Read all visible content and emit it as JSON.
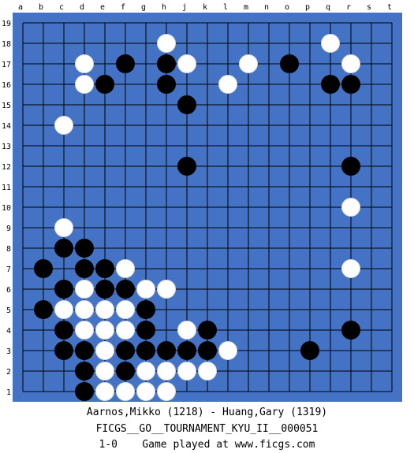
{
  "board": {
    "size": 19,
    "background_color": "#4472c4",
    "line_color": "#000000",
    "columns": [
      "a",
      "b",
      "c",
      "d",
      "e",
      "f",
      "g",
      "h",
      "j",
      "k",
      "l",
      "m",
      "n",
      "o",
      "p",
      "q",
      "r",
      "s",
      "t"
    ],
    "rows": [
      "19",
      "18",
      "17",
      "16",
      "15",
      "14",
      "13",
      "12",
      "11",
      "10",
      "9",
      "8",
      "7",
      "6",
      "5",
      "4",
      "3",
      "2",
      "1"
    ],
    "stones": [
      {
        "color": "white",
        "col": "h",
        "row": 18
      },
      {
        "color": "white",
        "col": "q",
        "row": 18
      },
      {
        "color": "white",
        "col": "d",
        "row": 17
      },
      {
        "color": "black",
        "col": "f",
        "row": 17
      },
      {
        "color": "black",
        "col": "h",
        "row": 17
      },
      {
        "color": "white",
        "col": "j",
        "row": 17
      },
      {
        "color": "white",
        "col": "m",
        "row": 17
      },
      {
        "color": "black",
        "col": "o",
        "row": 17
      },
      {
        "color": "white",
        "col": "r",
        "row": 17
      },
      {
        "color": "white",
        "col": "d",
        "row": 16
      },
      {
        "color": "black",
        "col": "e",
        "row": 16
      },
      {
        "color": "black",
        "col": "h",
        "row": 16
      },
      {
        "color": "white",
        "col": "l",
        "row": 16
      },
      {
        "color": "black",
        "col": "q",
        "row": 16
      },
      {
        "color": "black",
        "col": "r",
        "row": 16
      },
      {
        "color": "black",
        "col": "j",
        "row": 15
      },
      {
        "color": "white",
        "col": "c",
        "row": 14
      },
      {
        "color": "black",
        "col": "j",
        "row": 12
      },
      {
        "color": "black",
        "col": "r",
        "row": 12
      },
      {
        "color": "white",
        "col": "r",
        "row": 10
      },
      {
        "color": "white",
        "col": "c",
        "row": 9
      },
      {
        "color": "black",
        "col": "c",
        "row": 8
      },
      {
        "color": "black",
        "col": "d",
        "row": 8
      },
      {
        "color": "black",
        "col": "b",
        "row": 7
      },
      {
        "color": "black",
        "col": "d",
        "row": 7
      },
      {
        "color": "black",
        "col": "e",
        "row": 7
      },
      {
        "color": "white",
        "col": "f",
        "row": 7
      },
      {
        "color": "white",
        "col": "r",
        "row": 7
      },
      {
        "color": "black",
        "col": "c",
        "row": 6
      },
      {
        "color": "white",
        "col": "d",
        "row": 6
      },
      {
        "color": "black",
        "col": "e",
        "row": 6
      },
      {
        "color": "black",
        "col": "f",
        "row": 6
      },
      {
        "color": "white",
        "col": "g",
        "row": 6
      },
      {
        "color": "white",
        "col": "h",
        "row": 6
      },
      {
        "color": "black",
        "col": "b",
        "row": 5
      },
      {
        "color": "white",
        "col": "c",
        "row": 5
      },
      {
        "color": "white",
        "col": "d",
        "row": 5
      },
      {
        "color": "white",
        "col": "e",
        "row": 5
      },
      {
        "color": "white",
        "col": "f",
        "row": 5
      },
      {
        "color": "black",
        "col": "g",
        "row": 5
      },
      {
        "color": "black",
        "col": "c",
        "row": 4
      },
      {
        "color": "white",
        "col": "d",
        "row": 4
      },
      {
        "color": "white",
        "col": "e",
        "row": 4
      },
      {
        "color": "white",
        "col": "f",
        "row": 4
      },
      {
        "color": "black",
        "col": "g",
        "row": 4
      },
      {
        "color": "white",
        "col": "j",
        "row": 4
      },
      {
        "color": "black",
        "col": "k",
        "row": 4
      },
      {
        "color": "black",
        "col": "r",
        "row": 4
      },
      {
        "color": "black",
        "col": "c",
        "row": 3
      },
      {
        "color": "black",
        "col": "d",
        "row": 3
      },
      {
        "color": "white",
        "col": "e",
        "row": 3
      },
      {
        "color": "black",
        "col": "f",
        "row": 3
      },
      {
        "color": "black",
        "col": "g",
        "row": 3
      },
      {
        "color": "black",
        "col": "h",
        "row": 3
      },
      {
        "color": "black",
        "col": "j",
        "row": 3
      },
      {
        "color": "black",
        "col": "k",
        "row": 3
      },
      {
        "color": "white",
        "col": "l",
        "row": 3
      },
      {
        "color": "black",
        "col": "p",
        "row": 3
      },
      {
        "color": "black",
        "col": "d",
        "row": 2
      },
      {
        "color": "white",
        "col": "e",
        "row": 2
      },
      {
        "color": "black",
        "col": "f",
        "row": 2
      },
      {
        "color": "white",
        "col": "g",
        "row": 2
      },
      {
        "color": "white",
        "col": "h",
        "row": 2
      },
      {
        "color": "white",
        "col": "j",
        "row": 2
      },
      {
        "color": "white",
        "col": "k",
        "row": 2
      },
      {
        "color": "black",
        "col": "d",
        "row": 1
      },
      {
        "color": "white",
        "col": "e",
        "row": 1
      },
      {
        "color": "white",
        "col": "f",
        "row": 1
      },
      {
        "color": "white",
        "col": "g",
        "row": 1
      },
      {
        "color": "white",
        "col": "h",
        "row": 1
      }
    ]
  },
  "caption": {
    "players": "Aarnos,Mikko (1218) - Huang,Gary (1319)",
    "tournament": "FICGS__GO__TOURNAMENT_KYU_II__000051",
    "result": "1-0    Game played at www.ficgs.com"
  }
}
